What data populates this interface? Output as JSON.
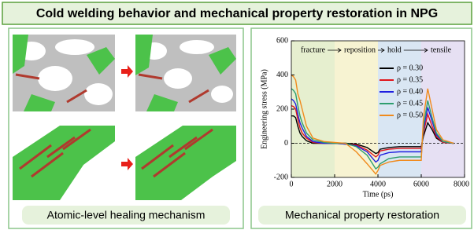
{
  "header": {
    "title": "Cold welding behavior and mechanical property restoration in NPG"
  },
  "left": {
    "caption": "Atomic-level healing mechanism"
  },
  "right": {
    "caption": "Mechanical property restoration"
  },
  "chart_data": {
    "type": "line",
    "xlabel": "Time (ps)",
    "ylabel": "Engineering stress (MPa)",
    "xlim": [
      0,
      8000
    ],
    "xticks": [
      0,
      2000,
      4000,
      6000,
      8000
    ],
    "ylim": [
      -200,
      600
    ],
    "yticks": [
      -200,
      0,
      200,
      400,
      600
    ],
    "hline": 0,
    "phases": [
      {
        "label": "fracture",
        "start": 0,
        "end": 2000,
        "color": "#e6efcf"
      },
      {
        "label": "reposition",
        "start": 2000,
        "end": 4000,
        "color": "#f7f3d2"
      },
      {
        "label": "hold",
        "start": 4000,
        "end": 6000,
        "color": "#d9e6f3"
      },
      {
        "label": "tensile",
        "start": 6000,
        "end": 8000,
        "color": "#e6e0f3"
      }
    ],
    "x": [
      0,
      100,
      200,
      300,
      400,
      500,
      700,
      1000,
      1500,
      2000,
      2500,
      3000,
      3500,
      3900,
      4000,
      4100,
      4500,
      5000,
      5500,
      5900,
      6000,
      6100,
      6300,
      6500,
      6700,
      7000,
      7500
    ],
    "series": [
      {
        "name": "ρ = 0.30",
        "color": "#000000",
        "values": [
          160,
          160,
          150,
          100,
          60,
          40,
          15,
          0,
          0,
          0,
          0,
          -5,
          -25,
          -60,
          -55,
          -35,
          -25,
          -20,
          -20,
          -20,
          -20,
          40,
          120,
          80,
          30,
          5,
          0
        ]
      },
      {
        "name": "ρ = 0.35",
        "color": "#e0161c",
        "values": [
          220,
          215,
          200,
          140,
          90,
          60,
          30,
          5,
          0,
          0,
          -5,
          -10,
          -40,
          -80,
          -70,
          -45,
          -35,
          -30,
          -30,
          -30,
          -30,
          60,
          170,
          100,
          40,
          5,
          0
        ]
      },
      {
        "name": "ρ = 0.40",
        "color": "#1f1fe0",
        "values": [
          260,
          250,
          230,
          170,
          120,
          90,
          40,
          10,
          0,
          0,
          -5,
          -15,
          -50,
          -110,
          -100,
          -70,
          -55,
          -50,
          -50,
          -50,
          -50,
          80,
          210,
          130,
          50,
          10,
          0
        ]
      },
      {
        "name": "ρ = 0.45",
        "color": "#2e9e6e",
        "values": [
          320,
          310,
          290,
          220,
          160,
          120,
          60,
          20,
          5,
          0,
          0,
          -20,
          -70,
          -150,
          -140,
          -120,
          -90,
          -80,
          -80,
          -80,
          -80,
          100,
          250,
          150,
          60,
          10,
          0
        ]
      },
      {
        "name": "ρ = 0.50",
        "color": "#f08a1c",
        "values": [
          400,
          390,
          370,
          290,
          250,
          200,
          100,
          30,
          10,
          5,
          0,
          -50,
          -120,
          -180,
          -160,
          -130,
          -110,
          -100,
          -100,
          -100,
          -100,
          150,
          320,
          200,
          80,
          20,
          0
        ]
      }
    ]
  }
}
